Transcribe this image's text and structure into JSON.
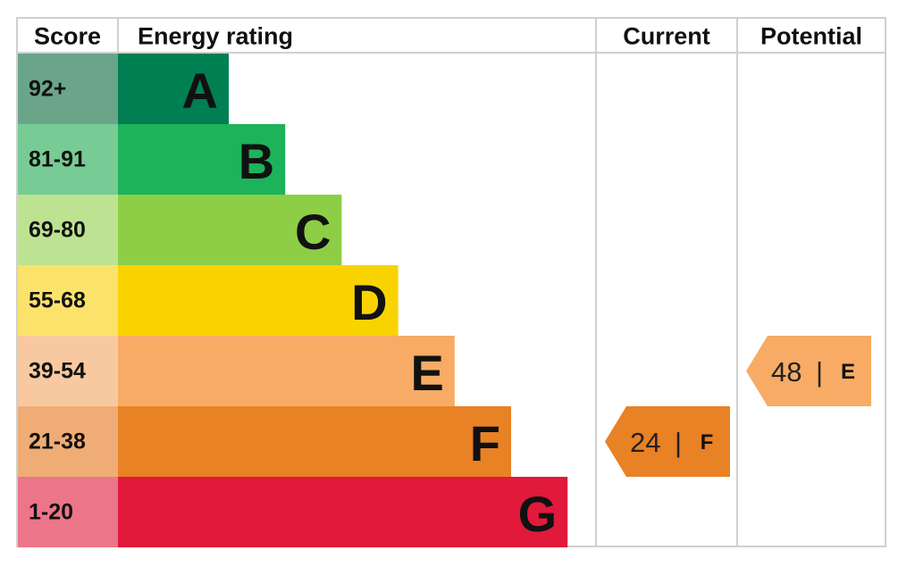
{
  "chart_data": {
    "type": "epc",
    "headers": {
      "score": "Score",
      "rating": "Energy rating",
      "current": "Current",
      "potential": "Potential"
    },
    "bands": [
      {
        "score": "92+",
        "letter": "A",
        "color": "#007f52",
        "score_color": "#6aa58a"
      },
      {
        "score": "81-91",
        "letter": "B",
        "color": "#1db35a",
        "score_color": "#76cc94"
      },
      {
        "score": "69-80",
        "letter": "C",
        "color": "#8dce46",
        "score_color": "#bde392"
      },
      {
        "score": "55-68",
        "letter": "D",
        "color": "#f9d300",
        "score_color": "#fbe36b"
      },
      {
        "score": "39-54",
        "letter": "E",
        "color": "#f7ab64",
        "score_color": "#f8c9a0"
      },
      {
        "score": "21-38",
        "letter": "F",
        "color": "#e98125",
        "score_color": "#efad75"
      },
      {
        "score": "1-20",
        "letter": "G",
        "color": "#e1193b",
        "score_color": "#ec7589"
      }
    ],
    "separator": "|",
    "current": {
      "value": 24,
      "letter": "F"
    },
    "potential": {
      "value": 48,
      "letter": "E"
    }
  }
}
